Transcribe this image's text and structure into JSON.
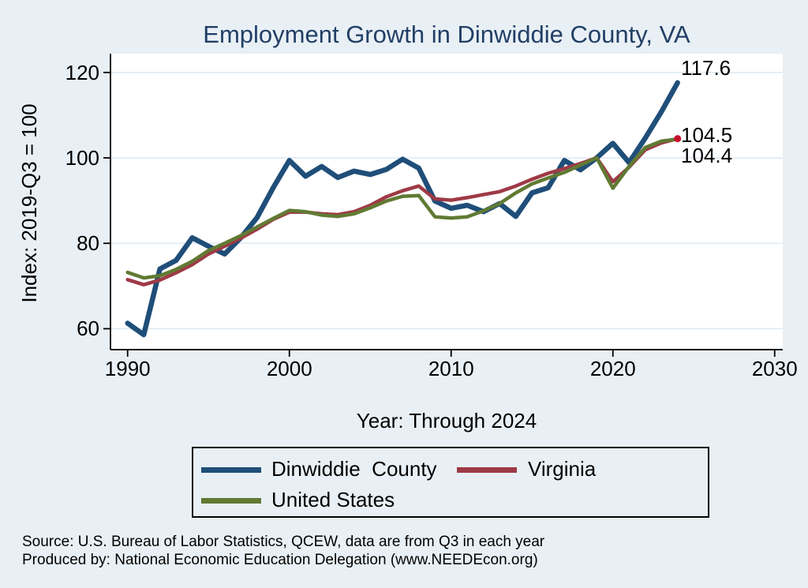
{
  "title": "Employment Growth in Dinwiddie County, VA",
  "chart_data": {
    "type": "line",
    "x": [
      1990,
      1991,
      1992,
      1993,
      1994,
      1995,
      1996,
      1997,
      1998,
      1999,
      2000,
      2001,
      2002,
      2003,
      2004,
      2005,
      2006,
      2007,
      2008,
      2009,
      2010,
      2011,
      2012,
      2013,
      2014,
      2015,
      2016,
      2017,
      2018,
      2019,
      2020,
      2021,
      2022,
      2023,
      2024
    ],
    "series": [
      {
        "name": "Dinwiddie  County",
        "color": "#1F4E79",
        "stroke_width": 6.5,
        "end_marker": false,
        "values": [
          61.3,
          58.6,
          74.0,
          76.0,
          81.3,
          79.3,
          77.5,
          81.3,
          86.0,
          93.0,
          99.4,
          95.7,
          98.0,
          95.4,
          96.9,
          96.1,
          97.3,
          99.7,
          97.6,
          89.9,
          88.2,
          88.9,
          87.4,
          89.3,
          86.3,
          91.8,
          93.0,
          99.4,
          97.2,
          100.0,
          103.4,
          98.9,
          104.6,
          110.8,
          117.6
        ]
      },
      {
        "name": "Virginia",
        "color": "#9E3A46",
        "stroke_width": 4.5,
        "end_marker": true,
        "values": [
          71.5,
          70.3,
          71.4,
          73.1,
          75.0,
          77.5,
          79.3,
          81.2,
          83.3,
          85.6,
          87.3,
          87.3,
          86.9,
          86.7,
          87.4,
          88.9,
          90.9,
          92.3,
          93.4,
          90.4,
          90.1,
          90.7,
          91.4,
          92.1,
          93.4,
          95.0,
          96.4,
          97.5,
          98.7,
          100.0,
          94.4,
          97.8,
          101.9,
          103.5,
          104.5
        ]
      },
      {
        "name": "United States",
        "color": "#617A33",
        "stroke_width": 4.5,
        "end_marker": false,
        "values": [
          73.2,
          71.9,
          72.4,
          73.9,
          75.8,
          78.3,
          80.0,
          81.8,
          83.8,
          85.8,
          87.7,
          87.4,
          86.6,
          86.3,
          86.9,
          88.3,
          89.9,
          91.0,
          91.2,
          86.2,
          85.9,
          86.2,
          87.6,
          89.3,
          91.8,
          93.9,
          95.3,
          96.6,
          98.3,
          100.0,
          92.9,
          98.0,
          102.4,
          103.9,
          104.4
        ]
      }
    ],
    "xlabel": "Year: Through 2024",
    "ylabel": "Index: 2019-Q3 = 100",
    "xlim": [
      1988.94,
      2030.5
    ],
    "ylim": [
      55.1,
      124.4
    ],
    "x_ticks": [
      1990,
      2000,
      2010,
      2020,
      2030
    ],
    "y_ticks": [
      60,
      80,
      100,
      120
    ],
    "grid": "horizontal",
    "legend_position": "bottom",
    "end_labels": {
      "dinwiddie": "117.6",
      "virginia": "104.5",
      "united_states": "104.4"
    }
  },
  "colors": {
    "background": "#E9F0F5",
    "plot_background": "#FFFFFF",
    "gridline": "#DFEAF2",
    "axis": "#000000",
    "title": "#223F66",
    "marker_dot": "#C8102E"
  },
  "source": {
    "line1": "Source: U.S. Bureau of Labor Statistics, QCEW, data are from Q3 in each year",
    "line2": "Produced by: National Economic Education Delegation (www.NEEDEcon.org)"
  }
}
